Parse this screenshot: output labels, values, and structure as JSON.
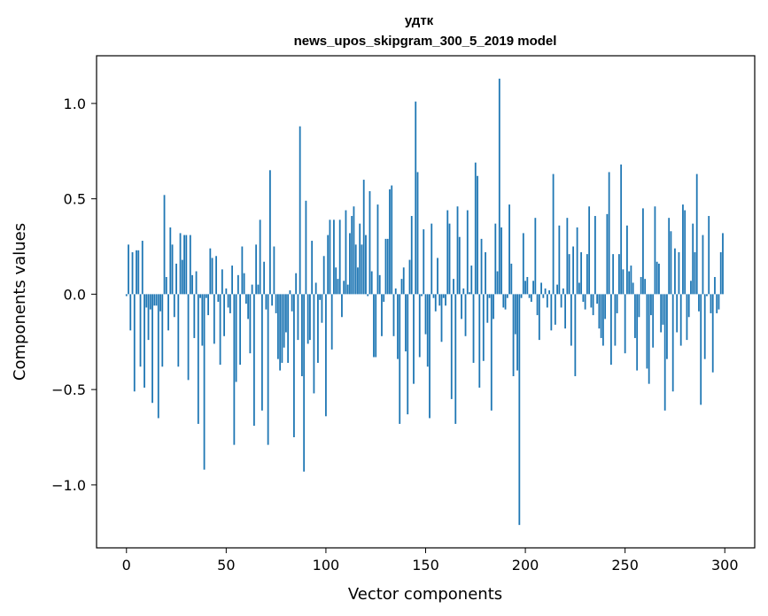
{
  "chart_data": {
    "type": "bar",
    "title": "удтк",
    "subtitle": "news_upos_skipgram_300_5_2019 model",
    "xlabel": "Vector components",
    "ylabel": "Components values",
    "xlim": [
      -15,
      315
    ],
    "ylim": [
      -1.33,
      1.25
    ],
    "xticks": [
      0,
      50,
      100,
      150,
      200,
      250,
      300
    ],
    "xtick_labels": [
      "0",
      "50",
      "100",
      "150",
      "200",
      "250",
      "300"
    ],
    "yticks": [
      -1.0,
      -0.5,
      0.0,
      0.5,
      1.0
    ],
    "ytick_labels": [
      "−1.0",
      "−0.5",
      "0.0",
      "0.5",
      "1.0"
    ],
    "grid": false,
    "bar_color": "#1f77b4",
    "values": [
      -0.01,
      0.26,
      -0.19,
      0.22,
      -0.51,
      0.23,
      0.23,
      -0.38,
      0.28,
      -0.49,
      -0.07,
      -0.24,
      -0.08,
      -0.57,
      -0.06,
      -0.06,
      -0.65,
      -0.09,
      -0.38,
      0.52,
      0.09,
      -0.19,
      0.35,
      0.26,
      -0.12,
      0.16,
      -0.38,
      0.32,
      0.18,
      0.31,
      0.31,
      -0.45,
      0.31,
      0.1,
      -0.23,
      0.12,
      -0.68,
      -0.02,
      -0.27,
      -0.92,
      -0.02,
      -0.11,
      0.24,
      0.19,
      -0.26,
      0.2,
      -0.04,
      -0.37,
      0.13,
      -0.22,
      0.03,
      -0.07,
      -0.1,
      0.15,
      -0.79,
      -0.46,
      0.1,
      -0.37,
      0.25,
      0.11,
      -0.05,
      -0.13,
      -0.31,
      0.05,
      -0.69,
      0.26,
      0.05,
      0.39,
      -0.61,
      0.17,
      -0.08,
      -0.79,
      0.65,
      -0.06,
      0.25,
      -0.1,
      -0.34,
      -0.4,
      -0.36,
      -0.28,
      -0.2,
      -0.36,
      0.02,
      -0.09,
      -0.75,
      0.11,
      -0.24,
      0.88,
      -0.43,
      -0.93,
      0.49,
      -0.26,
      -0.24,
      0.28,
      -0.52,
      0.06,
      -0.36,
      -0.03,
      -0.15,
      0.2,
      -0.64,
      0.31,
      0.39,
      -0.29,
      0.39,
      0.14,
      0.08,
      0.39,
      -0.12,
      0.07,
      0.44,
      0.05,
      0.32,
      0.41,
      0.46,
      0.26,
      0.14,
      0.37,
      0.26,
      0.6,
      0.31,
      -0.01,
      0.54,
      0.12,
      -0.33,
      -0.33,
      0.47,
      0.1,
      -0.22,
      -0.04,
      0.29,
      0.29,
      0.55,
      0.57,
      -0.22,
      0.03,
      -0.34,
      -0.68,
      0.08,
      0.14,
      -0.3,
      -0.63,
      0.18,
      0.41,
      -0.47,
      1.01,
      0.64,
      -0.33,
      -0.01,
      0.34,
      -0.21,
      -0.38,
      -0.65,
      0.37,
      -0.02,
      -0.09,
      0.19,
      -0.06,
      -0.25,
      -0.02,
      -0.06,
      0.44,
      0.37,
      -0.55,
      0.08,
      -0.68,
      0.46,
      0.3,
      -0.13,
      0.03,
      -0.22,
      0.44,
      0.01,
      0.15,
      -0.36,
      0.69,
      0.62,
      -0.49,
      0.29,
      -0.35,
      0.22,
      -0.15,
      -0.02,
      -0.61,
      -0.13,
      0.37,
      0.12,
      1.13,
      0.35,
      -0.07,
      -0.08,
      -0.02,
      0.47,
      0.16,
      -0.43,
      -0.21,
      -0.4,
      -1.21,
      -0.02,
      0.32,
      0.07,
      0.09,
      -0.02,
      -0.04,
      0.07,
      0.4,
      -0.11,
      -0.24,
      0.06,
      -0.02,
      0.03,
      -0.07,
      0.02,
      -0.19,
      0.63,
      -0.16,
      0.05,
      0.36,
      -0.07,
      0.03,
      -0.18,
      0.4,
      0.21,
      -0.27,
      0.25,
      -0.43,
      0.35,
      0.06,
      0.22,
      -0.04,
      -0.08,
      0.21,
      0.46,
      -0.07,
      -0.11,
      0.41,
      -0.05,
      -0.18,
      -0.23,
      -0.27,
      -0.13,
      0.42,
      0.64,
      -0.37,
      0.21,
      -0.27,
      -0.1,
      0.21,
      0.68,
      0.13,
      -0.31,
      0.36,
      0.12,
      0.15,
      0.06,
      -0.23,
      -0.4,
      -0.12,
      0.09,
      0.45,
      0.08,
      -0.39,
      -0.47,
      -0.11,
      -0.28,
      0.46,
      0.17,
      0.16,
      -0.2,
      -0.16,
      -0.61,
      -0.34,
      0.4,
      0.33,
      -0.51,
      0.24,
      -0.2,
      0.22,
      -0.27,
      0.47,
      0.44,
      -0.24,
      -0.12,
      0.07,
      0.37,
      0.22,
      0.63,
      -0.09,
      -0.58,
      0.31,
      -0.34,
      -0.01,
      0.41,
      -0.1,
      -0.41,
      0.09,
      -0.1,
      -0.08,
      0.22,
      0.32
    ]
  }
}
